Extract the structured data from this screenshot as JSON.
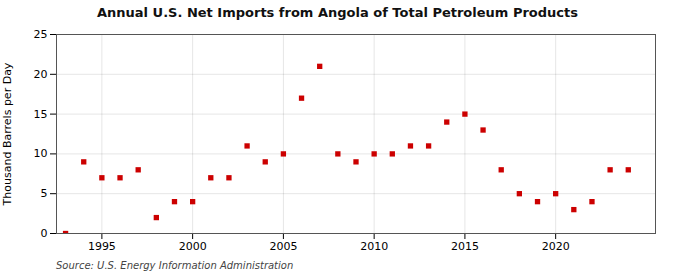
{
  "chart_data": {
    "type": "scatter",
    "title": "Annual U.S. Net Imports from Angola of Total Petroleum Products",
    "ylabel": "Thousand Barrels per Day",
    "annotations": [
      "Source: U.S. Energy Information Administration"
    ],
    "x": [
      1993,
      1994,
      1995,
      1996,
      1997,
      1998,
      1999,
      2000,
      2001,
      2002,
      2003,
      2004,
      2005,
      2006,
      2007,
      2008,
      2009,
      2010,
      2011,
      2012,
      2013,
      2014,
      2015,
      2016,
      2017,
      2018,
      2019,
      2020,
      2021,
      2022,
      2023,
      2024
    ],
    "values": [
      0,
      9,
      7,
      7,
      8,
      2,
      4,
      4,
      7,
      7,
      11,
      9,
      10,
      17,
      21,
      10,
      9,
      10,
      10,
      11,
      11,
      14,
      15,
      13,
      8,
      5,
      4,
      5,
      3,
      4,
      8,
      8
    ],
    "color": "#cc0000",
    "marker": "square",
    "xlim": [
      1992.5,
      2025.5
    ],
    "xticks": [
      1995,
      2000,
      2005,
      2010,
      2015,
      2020
    ],
    "ylim": [
      0,
      25
    ],
    "yticks": [
      0,
      5,
      10,
      15,
      20,
      25
    ],
    "grid": true
  }
}
